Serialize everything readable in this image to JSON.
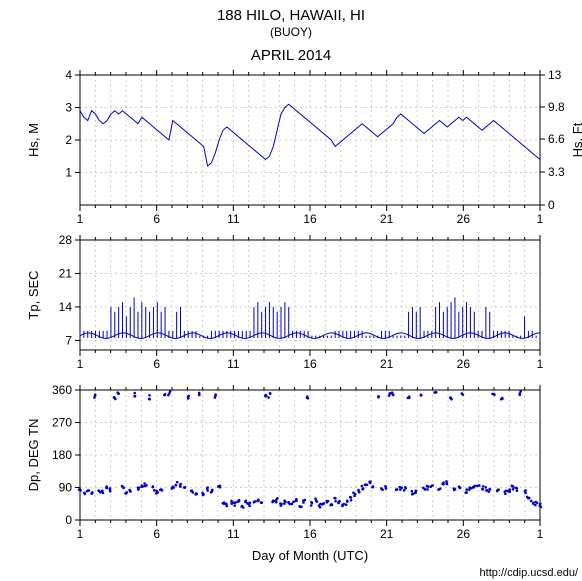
{
  "title_main": "188 HILO, HAWAII, HI",
  "title_sub": "(BUOY)",
  "title_month": "APRIL 2014",
  "footer_url": "http://cdip.ucsd.edu/",
  "xlabel": "Day of Month (UTC)",
  "line_color": "#0000cc",
  "grid_color": "#cccccc",
  "bg_color": "#ffffff",
  "x": {
    "min": 1,
    "max": 31,
    "ticks": [
      1,
      6,
      11,
      16,
      21,
      26,
      1
    ]
  },
  "panels": [
    {
      "ylabel_left": "Hs, M",
      "ylabel_right": "Hs, Ft",
      "ymin": 0,
      "ymax": 4,
      "yticks_left": [
        1,
        2,
        3,
        4
      ],
      "yticks_right": [
        0,
        3.3,
        6.6,
        9.8,
        13
      ],
      "type": "line",
      "data": [
        2.9,
        2.7,
        2.6,
        2.9,
        2.8,
        2.6,
        2.5,
        2.6,
        2.8,
        2.9,
        2.8,
        2.9,
        2.8,
        2.7,
        2.6,
        2.5,
        2.7,
        2.6,
        2.5,
        2.4,
        2.3,
        2.2,
        2.1,
        2.0,
        2.6,
        2.5,
        2.4,
        2.3,
        2.2,
        2.1,
        2.0,
        1.9,
        1.8,
        1.2,
        1.3,
        1.6,
        2.0,
        2.3,
        2.4,
        2.3,
        2.2,
        2.1,
        2.0,
        1.9,
        1.8,
        1.7,
        1.6,
        1.5,
        1.4,
        1.5,
        1.8,
        2.3,
        2.8,
        3.0,
        3.1,
        3.0,
        2.9,
        2.8,
        2.7,
        2.6,
        2.5,
        2.4,
        2.3,
        2.2,
        2.1,
        2.0,
        1.8,
        1.9,
        2.0,
        2.1,
        2.2,
        2.3,
        2.4,
        2.5,
        2.4,
        2.3,
        2.2,
        2.1,
        2.2,
        2.3,
        2.4,
        2.5,
        2.7,
        2.8,
        2.7,
        2.6,
        2.5,
        2.4,
        2.3,
        2.2,
        2.3,
        2.4,
        2.5,
        2.6,
        2.5,
        2.4,
        2.5,
        2.6,
        2.7,
        2.6,
        2.7,
        2.6,
        2.5,
        2.4,
        2.3,
        2.4,
        2.5,
        2.6,
        2.5,
        2.4,
        2.3,
        2.2,
        2.1,
        2.0,
        1.9,
        1.8,
        1.7,
        1.6,
        1.5,
        1.4
      ]
    },
    {
      "ylabel_left": "Tp, SEC",
      "ymin": 5,
      "ymax": 28,
      "yticks_left": [
        7,
        14,
        21,
        28
      ],
      "type": "bars",
      "data": [
        9,
        9,
        9,
        9,
        9,
        9,
        9,
        9,
        14,
        13,
        14,
        15,
        12,
        14,
        16,
        13,
        15,
        14,
        13,
        14,
        15,
        13,
        14,
        9,
        9,
        13,
        14,
        9,
        9,
        9,
        9,
        8,
        8,
        8,
        9,
        9,
        9,
        9,
        9,
        9,
        9,
        9,
        9,
        9,
        9,
        14,
        15,
        13,
        14,
        15,
        14,
        13,
        14,
        15,
        14,
        9,
        9,
        9,
        9,
        9,
        8,
        8,
        8,
        8,
        8,
        8,
        9,
        9,
        9,
        9,
        9,
        9,
        9,
        9,
        8,
        8,
        8,
        8,
        9,
        9,
        9,
        8,
        8,
        8,
        8,
        13,
        14,
        13,
        14,
        9,
        9,
        9,
        14,
        15,
        13,
        14,
        15,
        16,
        13,
        14,
        15,
        14,
        13,
        9,
        9,
        14,
        13,
        9,
        9,
        9,
        9,
        9,
        8,
        8,
        8,
        12,
        9,
        9,
        8,
        8
      ]
    },
    {
      "ylabel_left": "Dp, DEG TN",
      "ymin": 0,
      "ymax": 360,
      "yticks_left": [
        0,
        90,
        180,
        270,
        360
      ],
      "type": "scatter",
      "data": [
        80,
        75,
        85,
        78,
        345,
        82,
        75,
        90,
        85,
        340,
        350,
        88,
        75,
        80,
        348,
        85,
        90,
        95,
        340,
        88,
        78,
        85,
        345,
        350,
        90,
        100,
        95,
        85,
        340,
        80,
        75,
        348,
        70,
        85,
        80,
        345,
        90,
        45,
        40,
        50,
        45,
        55,
        40,
        50,
        45,
        48,
        52,
        45,
        340,
        345,
        50,
        55,
        42,
        48,
        50,
        45,
        55,
        40,
        50,
        340,
        45,
        55,
        40,
        45,
        50,
        45,
        55,
        50,
        45,
        48,
        60,
        70,
        80,
        90,
        100,
        105,
        95,
        340,
        85,
        90,
        345,
        350,
        80,
        90,
        85,
        340,
        75,
        80,
        345,
        85,
        90,
        95,
        350,
        90,
        100,
        105,
        340,
        85,
        90,
        345,
        80,
        85,
        95,
        100,
        90,
        85,
        80,
        345,
        85,
        340,
        75,
        80,
        90,
        85,
        350,
        80,
        60,
        50,
        45,
        40
      ]
    }
  ]
}
